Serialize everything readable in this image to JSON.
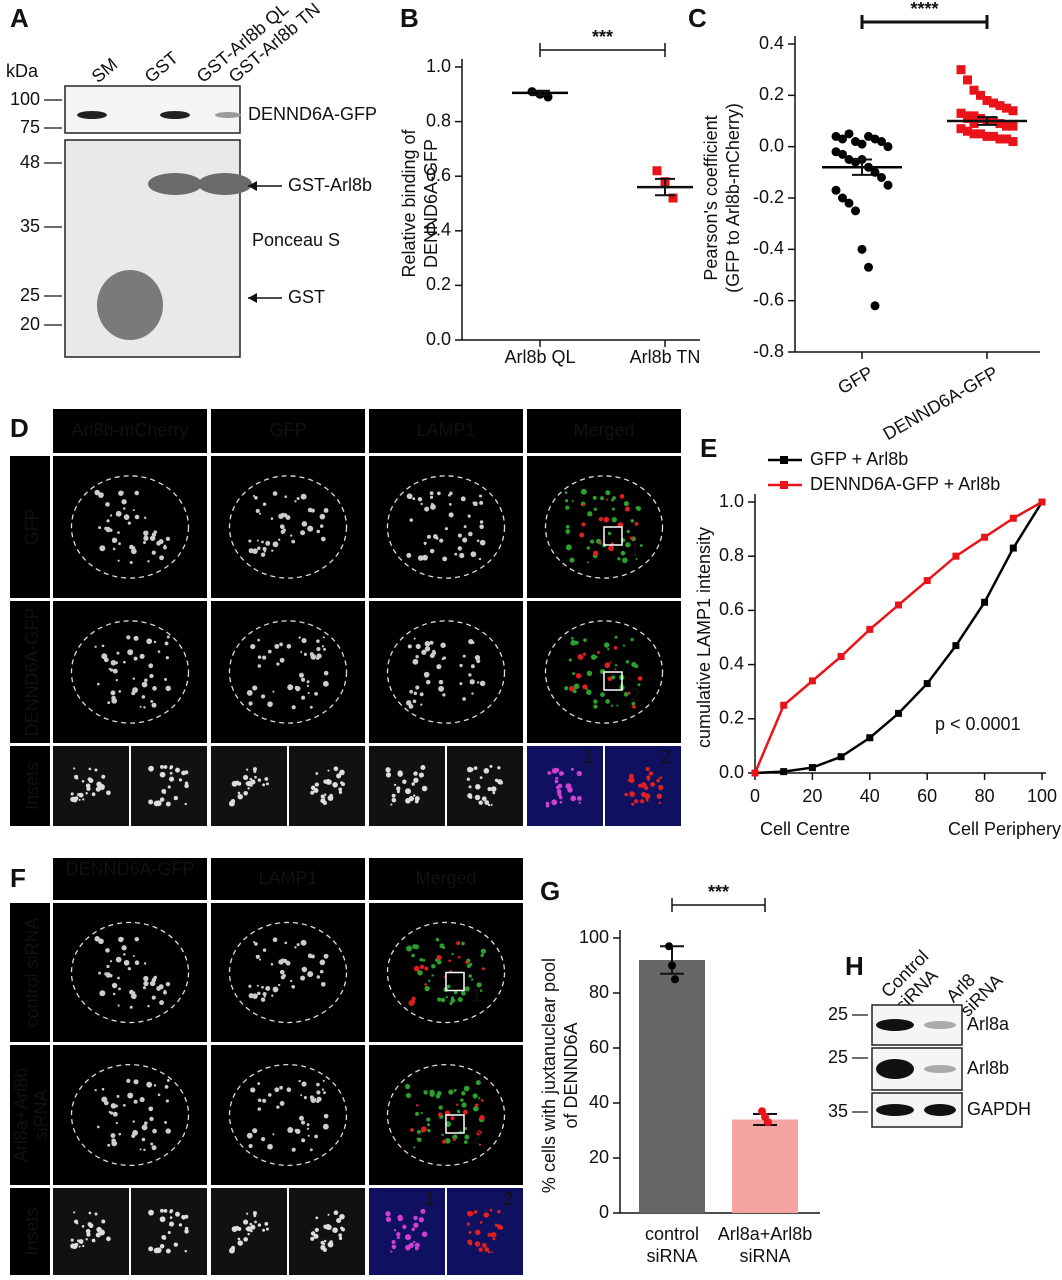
{
  "panel_a": {
    "label": "A",
    "unit": "kDa",
    "lanes": [
      "SM",
      "GST",
      "GST-Arl8b QL",
      "GST-Arl8b TN"
    ],
    "markers": [
      "100",
      "75",
      "48",
      "35",
      "25",
      "20"
    ],
    "annotations": [
      "DENND6A-GFP",
      "GST-Arl8b",
      "Ponceau S",
      "GST"
    ]
  },
  "chart_data": [
    {
      "type": "strip",
      "panel": "B",
      "ylabel": [
        "Relative binding of",
        "DENND6A-GFP"
      ],
      "categories": [
        "Arl8b QL",
        "Arl8b TN"
      ],
      "points": [
        [
          0.91,
          0.9,
          0.89
        ],
        [
          0.62,
          0.58,
          0.52
        ]
      ],
      "means": [
        0.905,
        0.56
      ],
      "errors": [
        0.008,
        0.03
      ],
      "colors": [
        "#000000",
        "#e8141a"
      ],
      "markers": [
        "circle",
        "square"
      ],
      "ylim": [
        0,
        1
      ],
      "yticks": [
        {
          "value": 0,
          "label": "0.0"
        },
        0.2,
        0.4,
        0.6,
        0.8,
        {
          "value": 1,
          "label": "1.0"
        }
      ],
      "significance": "***"
    },
    {
      "type": "strip",
      "panel": "C",
      "ylabel": [
        "Pearson's coefficient",
        "(GFP to Arl8b-mCherry)"
      ],
      "categories": [
        "GFP",
        "DENND6A-GFP"
      ],
      "points": [
        [
          0.04,
          0.03,
          0.05,
          0.02,
          0.01,
          0.04,
          0.03,
          0.02,
          0.0,
          -0.02,
          -0.03,
          -0.05,
          -0.06,
          -0.05,
          -0.08,
          -0.1,
          -0.12,
          -0.15,
          -0.17,
          -0.2,
          -0.22,
          -0.25,
          -0.4,
          -0.47,
          -0.62
        ],
        [
          0.3,
          0.26,
          0.22,
          0.2,
          0.18,
          0.17,
          0.16,
          0.15,
          0.14,
          0.13,
          0.12,
          0.12,
          0.11,
          0.1,
          0.1,
          0.09,
          0.08,
          0.08,
          0.07,
          0.06,
          0.05,
          0.05,
          0.04,
          0.04,
          0.03,
          0.03,
          0.02,
          0.13,
          0.11,
          0.09
        ]
      ],
      "means": [
        -0.08,
        0.1
      ],
      "errors": [
        0.03,
        0.015
      ],
      "colors": [
        "#000000",
        "#e8141a"
      ],
      "markers": [
        "circle",
        "square"
      ],
      "ylim": [
        -0.8,
        0.4
      ],
      "yticks": [
        -0.8,
        -0.6,
        -0.4,
        -0.2,
        {
          "value": 0,
          "label": "0.0"
        },
        0.2,
        0.4
      ],
      "significance": "****"
    },
    {
      "type": "line",
      "panel": "E",
      "ylabel": "cumulative LAMP1 intensity",
      "x": [
        0,
        10,
        20,
        30,
        40,
        50,
        60,
        70,
        80,
        90,
        100
      ],
      "series": [
        {
          "name": "GFP + Arl8b",
          "color": "#000000",
          "values": [
            0,
            0.005,
            0.02,
            0.06,
            0.13,
            0.22,
            0.33,
            0.47,
            0.63,
            0.83,
            1.0
          ]
        },
        {
          "name": "DENND6A-GFP + Arl8b",
          "color": "#e8141a",
          "values": [
            0,
            0.25,
            0.34,
            0.43,
            0.53,
            0.62,
            0.71,
            0.8,
            0.87,
            0.94,
            1.0
          ]
        }
      ],
      "xlim": [
        0,
        100
      ],
      "xticks": [
        0,
        20,
        40,
        60,
        80,
        100
      ],
      "ylim": [
        0,
        1
      ],
      "yticks": [
        {
          "value": 0,
          "label": "0.0"
        },
        0.2,
        0.4,
        0.6,
        0.8,
        {
          "value": 1,
          "label": "1.0"
        }
      ],
      "annotations": [
        "Cell Centre",
        "Cell Periphery",
        "p < 0.0001"
      ],
      "legend": "top"
    },
    {
      "type": "bar",
      "panel": "G",
      "ylabel": [
        "% cells with juxtanuclear pool",
        "of DENND6A"
      ],
      "categories": [
        "control siRNA",
        "Arl8a+Arl8b siRNA"
      ],
      "values": [
        92,
        34
      ],
      "errors": [
        5,
        2
      ],
      "points": [
        [
          97,
          90,
          85
        ],
        [
          37,
          35,
          33
        ]
      ],
      "colors": [
        "#666666",
        "#f6a3a3"
      ],
      "point_colors": [
        "#000000",
        "#e8141a"
      ],
      "ylim": [
        0,
        100
      ],
      "yticks": [
        0,
        20,
        40,
        60,
        80,
        100
      ],
      "significance": "***"
    }
  ],
  "panel_d": {
    "label": "D",
    "columns": [
      "Arl8b-mCherry",
      "GFP",
      "LAMP1",
      "Merged"
    ],
    "rows": [
      "GFP",
      "DENND6A-GFP",
      "Insets"
    ],
    "inset_numbers": [
      "1",
      "2"
    ]
  },
  "panel_f": {
    "label": "F",
    "columns": [
      "DENND6A-GFP",
      "LAMP1",
      "Merged"
    ],
    "rows": [
      "control siRNA",
      "Arl8a+Arl8b siRNA",
      "Insets"
    ],
    "inset_numbers": [
      "1",
      "2"
    ]
  },
  "panel_h": {
    "label": "H",
    "lanes": [
      "Control siRNA",
      "Arl8 siRNA"
    ],
    "markers": [
      "25",
      "25",
      "35"
    ],
    "bands": [
      "Arl8a",
      "Arl8b",
      "GAPDH"
    ]
  }
}
